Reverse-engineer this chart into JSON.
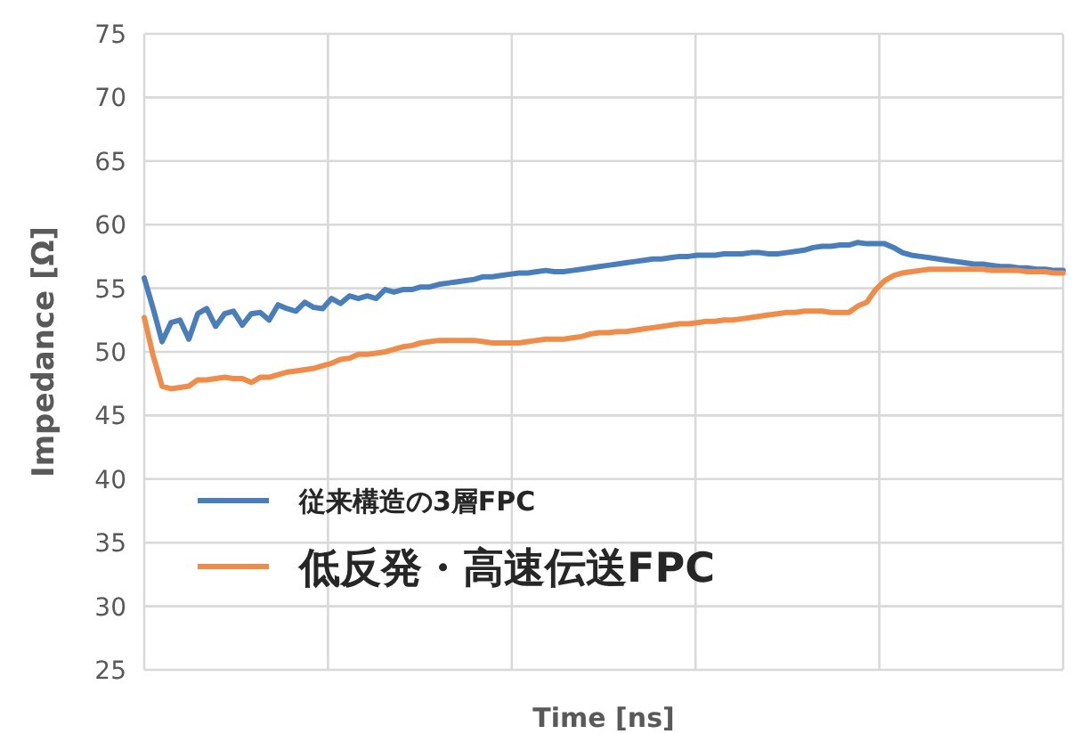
{
  "chart_data": {
    "type": "line",
    "xlabel": "Time [ns]",
    "ylabel": "Impedance [Ω]",
    "categories": [
      null,
      null,
      null,
      null,
      null,
      null,
      null,
      null,
      null,
      null,
      null,
      null,
      null,
      null,
      null,
      null,
      null,
      null,
      null,
      null,
      null,
      null,
      null,
      null,
      null,
      null,
      null,
      null,
      null,
      null,
      null,
      null,
      null,
      null,
      null,
      null,
      null,
      null,
      null,
      null,
      null,
      null,
      null,
      null,
      null,
      null,
      null,
      null,
      null,
      null,
      null,
      null,
      null,
      null,
      null,
      null,
      null,
      null,
      null,
      null,
      null,
      null,
      null,
      null,
      null,
      null,
      null,
      null,
      null,
      null,
      null,
      null,
      null,
      null,
      null,
      null,
      null,
      null,
      null,
      null,
      null,
      null,
      null,
      null,
      null,
      null,
      null,
      null,
      null,
      null,
      null,
      null,
      null,
      null,
      null,
      null,
      null,
      null,
      null,
      null,
      null,
      null,
      null,
      null
    ],
    "series": [
      {
        "name": "従来構造の3層FPC",
        "color": "#4a7ebb",
        "values": [
          55.8,
          53.4,
          50.8,
          52.3,
          52.5,
          51.0,
          53.0,
          53.4,
          52.0,
          53.0,
          53.2,
          52.1,
          53.0,
          53.1,
          52.5,
          53.7,
          53.4,
          53.2,
          53.9,
          53.5,
          53.4,
          54.2,
          53.8,
          54.4,
          54.2,
          54.4,
          54.2,
          54.9,
          54.7,
          54.9,
          54.9,
          55.1,
          55.1,
          55.3,
          55.4,
          55.5,
          55.6,
          55.7,
          55.9,
          55.9,
          56.0,
          56.1,
          56.2,
          56.2,
          56.3,
          56.4,
          56.3,
          56.3,
          56.4,
          56.5,
          56.6,
          56.7,
          56.8,
          56.9,
          57.0,
          57.1,
          57.2,
          57.3,
          57.3,
          57.4,
          57.5,
          57.5,
          57.6,
          57.6,
          57.6,
          57.7,
          57.7,
          57.7,
          57.8,
          57.8,
          57.7,
          57.7,
          57.8,
          57.9,
          58.0,
          58.2,
          58.3,
          58.3,
          58.4,
          58.4,
          58.6,
          58.5,
          58.5,
          58.5,
          58.2,
          57.8,
          57.6,
          57.5,
          57.4,
          57.3,
          57.2,
          57.1,
          57.0,
          56.9,
          56.9,
          56.8,
          56.7,
          56.7,
          56.6,
          56.6,
          56.5,
          56.5,
          56.4,
          56.4
        ]
      },
      {
        "name": "低反発・高速伝送FPC",
        "color": "#f08c4a",
        "values": [
          52.7,
          49.7,
          47.3,
          47.1,
          47.2,
          47.3,
          47.8,
          47.8,
          47.9,
          48.0,
          47.9,
          47.9,
          47.6,
          48.0,
          48.0,
          48.2,
          48.4,
          48.5,
          48.6,
          48.7,
          48.9,
          49.1,
          49.4,
          49.5,
          49.8,
          49.8,
          49.9,
          50.0,
          50.2,
          50.4,
          50.5,
          50.7,
          50.8,
          50.9,
          50.9,
          50.9,
          50.9,
          50.9,
          50.8,
          50.7,
          50.7,
          50.7,
          50.7,
          50.8,
          50.9,
          51.0,
          51.0,
          51.0,
          51.1,
          51.2,
          51.4,
          51.5,
          51.5,
          51.6,
          51.6,
          51.7,
          51.8,
          51.9,
          52.0,
          52.1,
          52.2,
          52.2,
          52.3,
          52.4,
          52.4,
          52.5,
          52.5,
          52.6,
          52.7,
          52.8,
          52.9,
          53.0,
          53.1,
          53.1,
          53.2,
          53.2,
          53.2,
          53.1,
          53.1,
          53.1,
          53.6,
          53.9,
          54.9,
          55.6,
          56.0,
          56.2,
          56.3,
          56.4,
          56.5,
          56.5,
          56.5,
          56.5,
          56.5,
          56.5,
          56.5,
          56.4,
          56.4,
          56.4,
          56.4,
          56.3,
          56.3,
          56.3,
          56.2,
          56.2
        ]
      }
    ],
    "ylim": [
      25,
      75
    ],
    "yticks": [
      25,
      30,
      35,
      40,
      45,
      50,
      55,
      60,
      65,
      70,
      75
    ],
    "grid": true,
    "legend": "bottom left",
    "tick_labels": "y",
    "marker": "none",
    "line_style": "solid"
  }
}
